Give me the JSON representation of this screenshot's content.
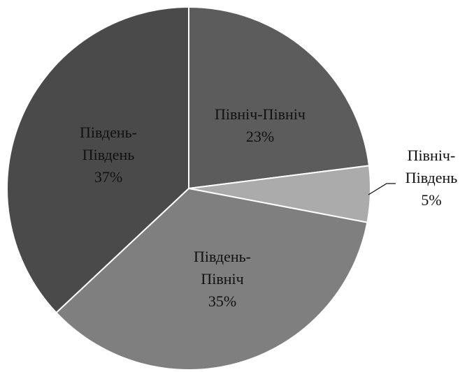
{
  "chart_data": {
    "type": "pie",
    "categories": [
      "Північ-Північ",
      "Північ-Південь",
      "Південь-Північ",
      "Південь-Південь"
    ],
    "values": [
      23,
      5,
      35,
      37
    ],
    "value_labels": [
      "23%",
      "5%",
      "35%",
      "37%"
    ],
    "colors": [
      "#5c5c5c",
      "#ababab",
      "#7f7f7f",
      "#4a4a4a"
    ]
  }
}
